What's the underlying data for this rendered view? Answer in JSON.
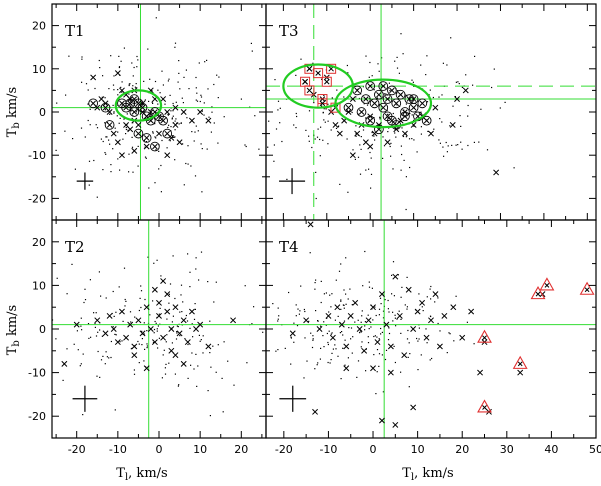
{
  "chart_data": {
    "type": "scatter",
    "layout": "2x2 panels with shared axes",
    "xlabel": "T",
    "xlabel_sub": "l",
    "xlabel_unit": ", km/s",
    "ylabel": "T",
    "ylabel_sub": "b",
    "ylabel_unit": " km/s",
    "ylim": [
      -25,
      25
    ],
    "yticks": [
      -20,
      -10,
      0,
      10,
      20
    ],
    "colors": {
      "reference_lines": "#33dd33",
      "ellipses": "#22cc22",
      "highlight": "#e03030",
      "points": "#000000"
    },
    "panels": [
      {
        "id": "T1",
        "label": "T1",
        "xlim": [
          -26,
          26
        ],
        "xticks": [
          -20,
          -10,
          0,
          10,
          20
        ],
        "vline": -4.5,
        "hline": 1,
        "ellipses": [
          {
            "cx": -5,
            "cy": 1.5,
            "rx": 5.5,
            "ry": 3.5
          }
        ],
        "error_bar": {
          "x": -18,
          "y": -16,
          "dx": 2,
          "dy": 2
        },
        "crosses": [
          [
            -16,
            8
          ],
          [
            -14,
            3
          ],
          [
            -15,
            1
          ],
          [
            -13,
            2
          ],
          [
            -12,
            0
          ],
          [
            -10,
            9
          ],
          [
            -9,
            5
          ],
          [
            -8,
            4
          ],
          [
            -8,
            -3
          ],
          [
            -7,
            3
          ],
          [
            -6,
            -2
          ],
          [
            -6,
            5
          ],
          [
            -5,
            -3
          ],
          [
            -4,
            0
          ],
          [
            -4,
            2
          ],
          [
            -3,
            -1
          ],
          [
            -3,
            -8
          ],
          [
            -2,
            0
          ],
          [
            -2,
            5
          ],
          [
            -1,
            3
          ],
          [
            0,
            -5
          ],
          [
            1,
            3
          ],
          [
            2,
            0
          ],
          [
            3,
            -6
          ],
          [
            4,
            -3
          ],
          [
            5,
            -7
          ],
          [
            6,
            0
          ],
          [
            8,
            -2
          ],
          [
            10,
            0
          ],
          [
            -11,
            -5
          ],
          [
            -9,
            -10
          ],
          [
            -6,
            -9
          ],
          [
            -10,
            -7
          ],
          [
            2,
            -10
          ],
          [
            12,
            -2
          ],
          [
            -7,
            -4
          ],
          [
            4,
            1
          ]
        ],
        "crossed_circles": [
          [
            -16,
            2
          ],
          [
            -13,
            1
          ],
          [
            -9,
            2
          ],
          [
            -8,
            1
          ],
          [
            -7,
            2
          ],
          [
            -6,
            0
          ],
          [
            -5,
            2
          ],
          [
            -4,
            1
          ],
          [
            -3,
            -1
          ],
          [
            -2,
            -2
          ],
          [
            -1,
            0
          ],
          [
            0,
            -1
          ],
          [
            1,
            -2
          ],
          [
            -6,
            3
          ],
          [
            -3,
            -6
          ],
          [
            -5,
            -5
          ],
          [
            -1,
            -8
          ],
          [
            -12,
            -3
          ],
          [
            2,
            -5
          ]
        ],
        "dots": {
          "count": 260,
          "cx": -3,
          "cy": 0,
          "sx": 11,
          "sy": 8,
          "seed": 11
        }
      },
      {
        "id": "T3",
        "label": "T3",
        "xlim": [
          -24,
          52
        ],
        "xticks": [
          -20,
          -10,
          0,
          10,
          20,
          30,
          40,
          50
        ],
        "vlines": [
          {
            "x": -13,
            "dashed": true
          },
          {
            "x": 2.5,
            "dashed": false
          }
        ],
        "hlines": [
          {
            "y": 6,
            "dashed": true
          },
          {
            "y": 3,
            "dashed": false
          }
        ],
        "ellipses": [
          {
            "cx": -12,
            "cy": 6,
            "rx": 8,
            "ry": 5
          },
          {
            "cx": 3,
            "cy": 2,
            "rx": 11,
            "ry": 5.5
          }
        ],
        "error_bar": {
          "x": -18,
          "y": -16,
          "dx": 3,
          "dy": 3
        },
        "boxed_points": [
          [
            -14,
            10
          ],
          [
            -15,
            7
          ],
          [
            -14,
            5
          ],
          [
            -12,
            9
          ],
          [
            -11,
            3
          ],
          [
            -9,
            10
          ],
          [
            -10,
            7
          ],
          [
            -11,
            2
          ],
          [
            -8,
            1
          ]
        ],
        "crosses": [
          [
            -15,
            7
          ],
          [
            -14,
            10
          ],
          [
            -13,
            4
          ],
          [
            -10,
            8
          ],
          [
            -9,
            0
          ],
          [
            -8,
            -3
          ],
          [
            -7,
            -5
          ],
          [
            -6,
            -2
          ],
          [
            -5,
            0
          ],
          [
            -4,
            3
          ],
          [
            -3,
            -5
          ],
          [
            -2,
            -3
          ],
          [
            -1,
            -7
          ],
          [
            0,
            -1
          ],
          [
            1,
            -5
          ],
          [
            2,
            -3
          ],
          [
            4,
            -7
          ],
          [
            6,
            -4
          ],
          [
            8,
            -5
          ],
          [
            10,
            -3
          ],
          [
            12,
            -1
          ],
          [
            15,
            1
          ],
          [
            19,
            -3
          ],
          [
            20,
            3
          ],
          [
            22,
            5
          ],
          [
            29,
            -14
          ],
          [
            -4,
            -10
          ],
          [
            0,
            -8
          ],
          [
            7,
            -2
          ],
          [
            14,
            -5
          ]
        ],
        "crossed_circles": [
          [
            -3,
            5
          ],
          [
            -1,
            3
          ],
          [
            0,
            6
          ],
          [
            1,
            2
          ],
          [
            2,
            4
          ],
          [
            3,
            1
          ],
          [
            4,
            3
          ],
          [
            5,
            5
          ],
          [
            6,
            2
          ],
          [
            7,
            4
          ],
          [
            8,
            0
          ],
          [
            9,
            3
          ],
          [
            10,
            1
          ],
          [
            11,
            -1
          ],
          [
            12,
            2
          ],
          [
            -2,
            0
          ],
          [
            0,
            -2
          ],
          [
            2,
            -4
          ],
          [
            4,
            -1
          ],
          [
            6,
            -3
          ],
          [
            8,
            -1
          ],
          [
            3,
            6
          ],
          [
            5,
            -2
          ],
          [
            10,
            3
          ],
          [
            -5,
            1
          ],
          [
            13,
            -2
          ]
        ],
        "dots": {
          "count": 260,
          "cx": 3,
          "cy": -1,
          "sx": 13,
          "sy": 7,
          "seed": 33
        }
      },
      {
        "id": "T2",
        "label": "T2",
        "xlim": [
          -26,
          26
        ],
        "xticks": [
          -20,
          -10,
          0,
          10,
          20
        ],
        "vline": -2.5,
        "hline": 1,
        "error_bar": {
          "x": -18,
          "y": -16,
          "dx": 3,
          "dy": 3
        },
        "crosses": [
          [
            -23,
            -8
          ],
          [
            -20,
            1
          ],
          [
            -15,
            2
          ],
          [
            -13,
            -1
          ],
          [
            -12,
            3
          ],
          [
            -11,
            0
          ],
          [
            -10,
            -3
          ],
          [
            -9,
            4
          ],
          [
            -8,
            -2
          ],
          [
            -7,
            1
          ],
          [
            -6,
            -4
          ],
          [
            -5,
            2
          ],
          [
            -4,
            -1
          ],
          [
            -3,
            5
          ],
          [
            -2,
            0
          ],
          [
            -1,
            -3
          ],
          [
            0,
            3
          ],
          [
            1,
            -2
          ],
          [
            2,
            4
          ],
          [
            3,
            0
          ],
          [
            4,
            5
          ],
          [
            5,
            -1
          ],
          [
            6,
            2
          ],
          [
            7,
            -3
          ],
          [
            8,
            4
          ],
          [
            9,
            0
          ],
          [
            10,
            1
          ],
          [
            12,
            -4
          ],
          [
            18,
            2
          ],
          [
            1,
            11
          ],
          [
            2,
            8
          ],
          [
            -1,
            9
          ],
          [
            4,
            -6
          ],
          [
            6,
            -8
          ],
          [
            -6,
            -6
          ],
          [
            0,
            6
          ],
          [
            -3,
            -9
          ],
          [
            3,
            -5
          ]
        ],
        "dots": {
          "count": 210,
          "cx": -2,
          "cy": 0,
          "sx": 11,
          "sy": 7,
          "seed": 22
        }
      },
      {
        "id": "T4",
        "label": "T4",
        "xlim": [
          -24,
          50
        ],
        "xticks": [
          -20,
          -10,
          0,
          10,
          20,
          30,
          40,
          50
        ],
        "vline": 2.5,
        "hline": 1,
        "error_bar": {
          "x": -18,
          "y": -16,
          "dx": 3,
          "dy": 3
        },
        "triangles": [
          [
            25,
            -2
          ],
          [
            25,
            -18
          ],
          [
            33,
            -8
          ],
          [
            37,
            8
          ],
          [
            39,
            10
          ],
          [
            48,
            9
          ]
        ],
        "crosses": [
          [
            -14,
            24
          ],
          [
            -18,
            -1
          ],
          [
            -15,
            2
          ],
          [
            -12,
            0
          ],
          [
            -10,
            3
          ],
          [
            -9,
            -2
          ],
          [
            -8,
            5
          ],
          [
            -7,
            1
          ],
          [
            -6,
            -4
          ],
          [
            -5,
            3
          ],
          [
            -4,
            6
          ],
          [
            -3,
            0
          ],
          [
            -2,
            -5
          ],
          [
            -1,
            2
          ],
          [
            0,
            5
          ],
          [
            1,
            -3
          ],
          [
            2,
            8
          ],
          [
            3,
            1
          ],
          [
            4,
            -4
          ],
          [
            5,
            12
          ],
          [
            6,
            3
          ],
          [
            7,
            -6
          ],
          [
            8,
            9
          ],
          [
            9,
            0
          ],
          [
            10,
            4
          ],
          [
            11,
            6
          ],
          [
            12,
            -2
          ],
          [
            13,
            2
          ],
          [
            14,
            8
          ],
          [
            15,
            -4
          ],
          [
            16,
            3
          ],
          [
            18,
            5
          ],
          [
            20,
            -2
          ],
          [
            22,
            4
          ],
          [
            25,
            -3
          ],
          [
            26,
            -19
          ],
          [
            33,
            -10
          ],
          [
            38,
            8
          ],
          [
            -13,
            -19
          ],
          [
            2,
            -21
          ],
          [
            5,
            -22
          ],
          [
            9,
            -18
          ],
          [
            -6,
            -9
          ],
          [
            0,
            -9
          ],
          [
            4,
            -10
          ],
          [
            24,
            -10
          ]
        ],
        "dots": {
          "count": 240,
          "cx": -3,
          "cy": 1,
          "sx": 12,
          "sy": 7,
          "seed": 44
        }
      }
    ]
  }
}
